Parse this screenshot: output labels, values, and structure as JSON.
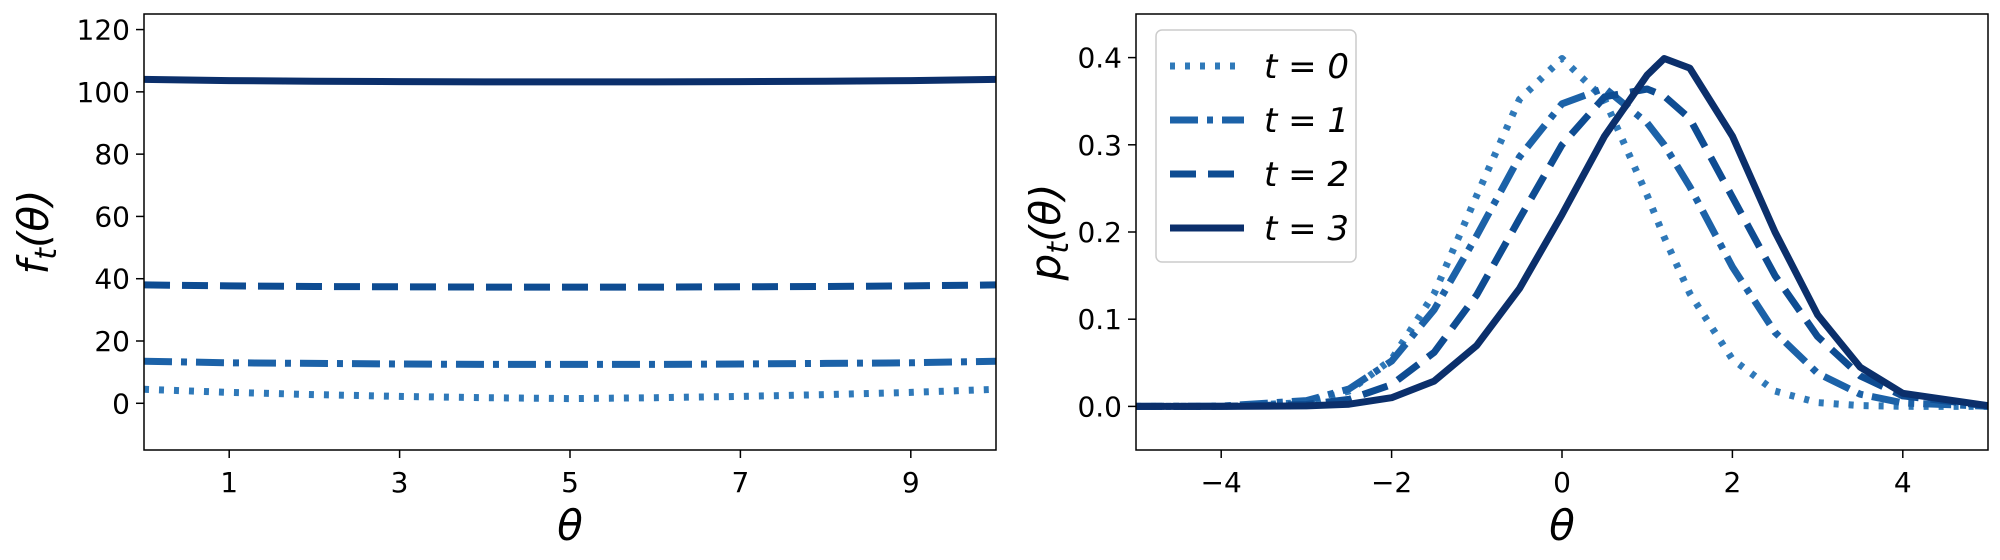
{
  "chart_data": [
    {
      "type": "line",
      "title": "",
      "xlabel": "θ",
      "ylabel": "f_t(θ)",
      "xlim": [
        0,
        10
      ],
      "ylim": [
        -15,
        125
      ],
      "xticks": [
        1,
        3,
        5,
        7,
        9
      ],
      "yticks": [
        0,
        20,
        40,
        60,
        80,
        100,
        120
      ],
      "xtick_labels": [
        "1",
        "3",
        "5",
        "7",
        "9"
      ],
      "ytick_labels": [
        "0",
        "20",
        "40",
        "60",
        "80",
        "100",
        "120"
      ],
      "grid": false,
      "legend": "none",
      "x": [
        0,
        1,
        2,
        3,
        4,
        5,
        6,
        7,
        8,
        9,
        10
      ],
      "series": [
        {
          "style": "dotted",
          "color": "#2f79b9",
          "values": [
            4.5,
            3.5,
            2.8,
            2.2,
            1.8,
            1.5,
            1.8,
            2.2,
            2.8,
            3.5,
            4.5
          ]
        },
        {
          "style": "dashdot",
          "color": "#1c62a8",
          "values": [
            13.5,
            13.0,
            12.8,
            12.6,
            12.5,
            12.5,
            12.5,
            12.6,
            12.8,
            13.0,
            13.5
          ]
        },
        {
          "style": "dashed",
          "color": "#0e4c92",
          "values": [
            38.0,
            37.7,
            37.5,
            37.4,
            37.3,
            37.3,
            37.3,
            37.4,
            37.5,
            37.7,
            38.0
          ]
        },
        {
          "style": "solid",
          "color": "#0b2f6b",
          "values": [
            104.0,
            103.6,
            103.4,
            103.3,
            103.2,
            103.2,
            103.2,
            103.3,
            103.4,
            103.6,
            104.0
          ]
        }
      ]
    },
    {
      "type": "line",
      "title": "",
      "xlabel": "θ",
      "ylabel": "p_t(θ)",
      "xlim": [
        -5,
        5
      ],
      "ylim": [
        -0.05,
        0.45
      ],
      "xticks": [
        -4,
        -2,
        0,
        2,
        4
      ],
      "yticks": [
        0.0,
        0.1,
        0.2,
        0.3,
        0.4
      ],
      "xtick_labels": [
        "−4",
        "−2",
        "0",
        "2",
        "4"
      ],
      "ytick_labels": [
        "0.0",
        "0.1",
        "0.2",
        "0.3",
        "0.4"
      ],
      "grid": false,
      "legend": "top-left",
      "x": [
        -5,
        -4,
        -3,
        -2.5,
        -2,
        -1.5,
        -1,
        -0.5,
        0,
        0.5,
        1,
        1.2,
        1.5,
        2,
        2.5,
        3,
        3.5,
        4,
        5
      ],
      "series": [
        {
          "name": "t = 0",
          "style": "dotted",
          "color": "#2f79b9",
          "values": [
            0.0,
            0.0001,
            0.0044,
            0.0175,
            0.054,
            0.1295,
            0.242,
            0.352,
            0.399,
            0.352,
            0.242,
            0.194,
            0.1295,
            0.054,
            0.0175,
            0.0044,
            0.0009,
            0.0001,
            0.0
          ]
        },
        {
          "name": "t = 1",
          "style": "dashdot",
          "color": "#1c62a8",
          "values": [
            0.0,
            0.0003,
            0.0067,
            0.0199,
            0.052,
            0.111,
            0.196,
            0.286,
            0.347,
            0.365,
            0.325,
            0.3,
            0.252,
            0.16,
            0.085,
            0.038,
            0.014,
            0.004,
            0.0002
          ]
        },
        {
          "name": "t = 2",
          "style": "dashed",
          "color": "#0e4c92",
          "values": [
            0.0,
            0.0001,
            0.0022,
            0.008,
            0.025,
            0.062,
            0.128,
            0.215,
            0.3,
            0.355,
            0.364,
            0.356,
            0.33,
            0.24,
            0.15,
            0.08,
            0.035,
            0.012,
            0.0006
          ]
        },
        {
          "name": "t = 3",
          "style": "solid",
          "color": "#0b2f6b",
          "values": [
            0.0,
            0.0,
            0.0006,
            0.0025,
            0.01,
            0.029,
            0.07,
            0.135,
            0.22,
            0.31,
            0.38,
            0.399,
            0.388,
            0.31,
            0.2,
            0.105,
            0.045,
            0.015,
            0.0008
          ]
        }
      ]
    }
  ]
}
